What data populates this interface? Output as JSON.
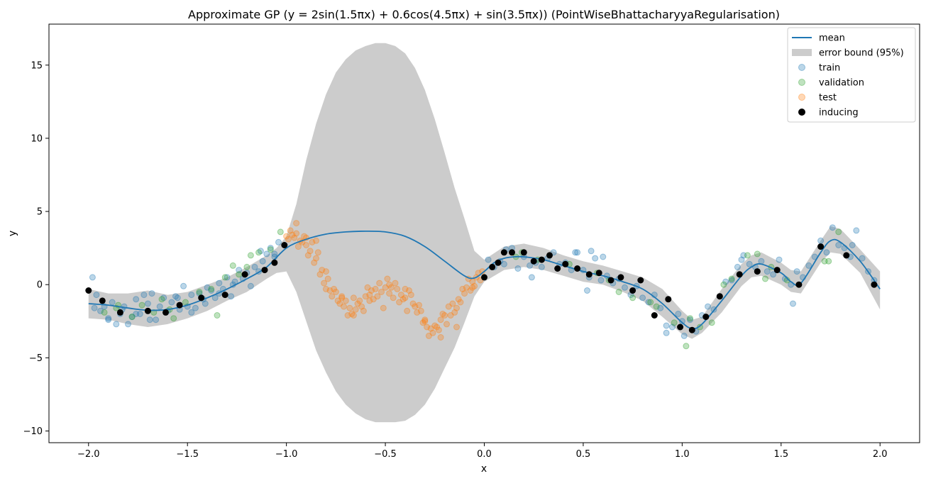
{
  "chart_data": {
    "type": "scatter",
    "title": "Approximate GP (y = 2sin(1.5πx) + 0.6cos(4.5πx) + sin(3.5πx)) (PointWiseBhattacharyyaRegularisation)",
    "xlabel": "x",
    "ylabel": "y",
    "xlim": [
      -2.2,
      2.2
    ],
    "ylim": [
      -10.8,
      17.8
    ],
    "xticks": [
      -2.0,
      -1.5,
      -1.0,
      -0.5,
      0.0,
      0.5,
      1.0,
      1.5,
      2.0
    ],
    "xtick_labels": [
      "−2.0",
      "−1.5",
      "−1.0",
      "−0.5",
      "0.0",
      "0.5",
      "1.0",
      "1.5",
      "2.0"
    ],
    "yticks": [
      -10,
      -5,
      0,
      5,
      10,
      15
    ],
    "ytick_labels": [
      "−10",
      "−5",
      "0",
      "5",
      "10",
      "15"
    ],
    "grid": false,
    "legend_position": "top-right",
    "colors": {
      "mean": "#1f77b4",
      "error_bound": "#cccccc",
      "train": "#1f77b4",
      "validation": "#2ca02c",
      "test": "#ff7f0e",
      "inducing": "#000000"
    },
    "legend": [
      {
        "key": "mean",
        "label": "mean",
        "marker": "line"
      },
      {
        "key": "error_bound",
        "label": "error bound (95%)",
        "marker": "patch"
      },
      {
        "key": "train",
        "label": "train",
        "marker": "circle-alpha"
      },
      {
        "key": "validation",
        "label": "validation",
        "marker": "circle-alpha"
      },
      {
        "key": "test",
        "label": "test",
        "marker": "circle-alpha"
      },
      {
        "key": "inducing",
        "label": "inducing",
        "marker": "circle"
      }
    ],
    "series": [
      {
        "name": "mean",
        "kind": "line",
        "x": [
          -2.0,
          -1.9,
          -1.8,
          -1.7,
          -1.6,
          -1.5,
          -1.4,
          -1.3,
          -1.2,
          -1.1,
          -1.0,
          -0.9,
          -0.8,
          -0.7,
          -0.6,
          -0.5,
          -0.4,
          -0.3,
          -0.2,
          -0.1,
          -0.05,
          0.0,
          0.05,
          0.1,
          0.15,
          0.2,
          0.3,
          0.4,
          0.5,
          0.6,
          0.7,
          0.8,
          0.9,
          1.0,
          1.05,
          1.1,
          1.2,
          1.3,
          1.35,
          1.4,
          1.5,
          1.55,
          1.6,
          1.7,
          1.75,
          1.8,
          1.9,
          2.0
        ],
        "y": [
          -1.3,
          -1.4,
          -1.6,
          -1.75,
          -1.7,
          -1.4,
          -0.9,
          -0.3,
          0.4,
          1.2,
          2.5,
          3.1,
          3.45,
          3.6,
          3.65,
          3.6,
          3.3,
          2.6,
          1.6,
          0.6,
          0.45,
          0.9,
          1.5,
          1.8,
          1.9,
          1.9,
          1.7,
          1.3,
          0.9,
          0.6,
          0.2,
          -0.3,
          -1.3,
          -2.6,
          -3.0,
          -2.7,
          -1.1,
          0.6,
          1.2,
          1.4,
          0.8,
          0.2,
          0.1,
          2.2,
          3.0,
          2.9,
          1.6,
          -0.3
        ]
      },
      {
        "name": "error bound (95%)",
        "kind": "band",
        "x": [
          -2.0,
          -1.9,
          -1.8,
          -1.7,
          -1.6,
          -1.5,
          -1.4,
          -1.3,
          -1.2,
          -1.1,
          -1.05,
          -1.0,
          -0.95,
          -0.9,
          -0.85,
          -0.8,
          -0.75,
          -0.7,
          -0.65,
          -0.6,
          -0.55,
          -0.5,
          -0.45,
          -0.4,
          -0.35,
          -0.3,
          -0.25,
          -0.2,
          -0.15,
          -0.1,
          -0.05,
          0.0,
          0.1,
          0.2,
          0.3,
          0.4,
          0.5,
          0.6,
          0.7,
          0.8,
          0.9,
          1.0,
          1.05,
          1.1,
          1.2,
          1.3,
          1.35,
          1.4,
          1.5,
          1.55,
          1.6,
          1.7,
          1.75,
          1.8,
          1.9,
          2.0
        ],
        "upper": [
          -0.3,
          -0.6,
          -0.6,
          -0.4,
          -0.7,
          -0.5,
          0.0,
          0.5,
          1.2,
          2.0,
          2.5,
          3.3,
          5.5,
          8.5,
          11.0,
          13.0,
          14.5,
          15.4,
          16.0,
          16.3,
          16.5,
          16.5,
          16.3,
          15.8,
          14.8,
          13.3,
          11.3,
          9.0,
          6.6,
          4.5,
          2.3,
          1.7,
          2.6,
          2.8,
          2.5,
          2.0,
          1.6,
          1.3,
          0.9,
          0.5,
          -0.3,
          -1.8,
          -2.4,
          -2.2,
          -0.3,
          1.4,
          2.0,
          2.2,
          1.5,
          1.0,
          0.9,
          3.0,
          4.0,
          3.8,
          2.4,
          0.9
        ],
        "lower": [
          -2.3,
          -2.4,
          -2.7,
          -2.9,
          -2.7,
          -2.3,
          -1.8,
          -1.1,
          -0.5,
          0.4,
          0.8,
          0.9,
          -0.5,
          -2.5,
          -4.5,
          -6.0,
          -7.3,
          -8.2,
          -8.8,
          -9.2,
          -9.4,
          -9.4,
          -9.4,
          -9.3,
          -8.9,
          -8.2,
          -7.1,
          -5.7,
          -4.3,
          -2.6,
          -0.8,
          0.2,
          1.0,
          1.2,
          1.0,
          0.6,
          0.2,
          0.0,
          -0.5,
          -1.1,
          -2.2,
          -3.4,
          -3.7,
          -3.3,
          -1.9,
          -0.1,
          0.5,
          0.6,
          0.0,
          -0.5,
          -0.6,
          1.5,
          2.2,
          2.1,
          0.8,
          -1.7
        ]
      },
      {
        "name": "train",
        "kind": "scatter",
        "x": [
          -1.98,
          -1.96,
          -1.94,
          -1.92,
          -1.9,
          -1.88,
          -1.86,
          -1.84,
          -1.82,
          -1.8,
          -1.78,
          -1.76,
          -1.74,
          -1.72,
          -1.7,
          -1.68,
          -1.66,
          -1.64,
          -1.62,
          -1.6,
          -1.58,
          -1.56,
          -1.54,
          -1.52,
          -1.5,
          -1.48,
          -1.46,
          -1.44,
          -1.42,
          -1.4,
          -1.38,
          -1.36,
          -1.34,
          -1.32,
          -1.3,
          -1.28,
          -1.26,
          -1.24,
          -1.22,
          -1.2,
          -1.18,
          -1.16,
          -1.14,
          -1.12,
          -1.1,
          -1.08,
          -1.06,
          -1.04,
          0.02,
          0.05,
          0.08,
          0.11,
          0.14,
          0.17,
          0.2,
          0.23,
          0.26,
          0.29,
          0.32,
          0.35,
          0.38,
          0.41,
          0.44,
          0.47,
          0.5,
          0.53,
          0.56,
          0.59,
          0.62,
          0.65,
          0.68,
          0.71,
          0.74,
          0.77,
          0.8,
          0.83,
          0.86,
          0.89,
          0.92,
          0.95,
          0.98,
          1.01,
          1.04,
          1.07,
          1.1,
          1.13,
          1.16,
          1.19,
          1.22,
          1.25,
          1.28,
          1.31,
          1.34,
          1.37,
          1.4,
          1.43,
          1.46,
          1.49,
          1.52,
          1.55,
          1.58,
          1.61,
          1.64,
          1.67,
          1.7,
          1.73,
          1.76,
          1.79,
          1.82,
          1.85,
          1.88,
          1.91,
          1.94,
          1.97,
          -1.97,
          -1.9,
          -1.83,
          -1.76,
          -1.69,
          -1.55,
          -1.48,
          -1.41,
          -1.34,
          -1.27,
          -1.13,
          -1.06,
          0.1,
          0.24,
          0.46,
          0.52,
          0.54,
          0.6,
          0.92,
          1.0,
          1.3,
          1.56,
          1.86
        ],
        "y": [
          0.5,
          -0.7,
          -1.8,
          -1.5,
          -2.4,
          -1.2,
          -2.7,
          -2.0,
          -1.5,
          -2.7,
          -2.2,
          -1.0,
          -2.0,
          -0.7,
          -1.3,
          -0.6,
          -2.4,
          -1.5,
          -0.9,
          -1.8,
          -1.2,
          -0.8,
          -1.7,
          -0.1,
          -1.5,
          -0.7,
          -1.6,
          -0.6,
          -1.0,
          -0.2,
          -0.4,
          -0.9,
          0.1,
          -0.3,
          0.5,
          -0.8,
          0.2,
          1.0,
          0.4,
          0.8,
          -0.1,
          1.2,
          0.9,
          1.6,
          2.1,
          2.5,
          1.9,
          2.9,
          1.7,
          1.2,
          1.6,
          2.4,
          2.5,
          1.1,
          1.9,
          1.3,
          1.5,
          1.2,
          1.8,
          2.2,
          1.4,
          1.5,
          1.0,
          2.2,
          1.0,
          0.5,
          1.8,
          0.3,
          0.6,
          0.1,
          0.4,
          -0.2,
          -0.7,
          -0.1,
          -0.9,
          -1.2,
          -0.7,
          -1.6,
          -2.8,
          -2.9,
          -2.0,
          -3.5,
          -2.4,
          -3.2,
          -2.1,
          -1.5,
          -1.7,
          -0.8,
          0.2,
          0.3,
          1.2,
          2.0,
          1.4,
          1.2,
          1.6,
          0.9,
          0.7,
          1.7,
          0.4,
          0.0,
          0.9,
          0.5,
          1.3,
          1.9,
          3.0,
          2.2,
          3.9,
          2.7,
          2.5,
          1.9,
          3.7,
          1.8,
          0.9,
          0.3,
          -1.6,
          -2.3,
          -1.7,
          -2.0,
          -2.4,
          -0.9,
          -1.9,
          -1.3,
          -0.6,
          0.0,
          2.3,
          2.1,
          1.4,
          0.5,
          2.2,
          -0.4,
          2.3,
          1.9,
          -3.3,
          -2.5,
          1.7,
          -1.3,
          2.7
        ]
      },
      {
        "name": "validation",
        "kind": "scatter",
        "x": [
          -1.92,
          -1.86,
          -1.78,
          -1.73,
          -1.67,
          -1.63,
          -1.57,
          -1.51,
          -1.44,
          -1.38,
          -1.31,
          -1.27,
          -1.24,
          -1.18,
          -1.14,
          -1.08,
          -1.03,
          0.16,
          0.19,
          0.43,
          0.63,
          0.68,
          0.75,
          0.84,
          0.87,
          1.02,
          1.04,
          1.09,
          1.15,
          1.21,
          1.33,
          1.38,
          1.42,
          1.53,
          1.74,
          1.79,
          -1.85,
          -1.59,
          -1.35,
          -1.2,
          0.27,
          0.57,
          0.96,
          1.25,
          1.45,
          1.72
        ],
        "y": [
          -1.9,
          -1.6,
          -2.2,
          -1.4,
          -1.9,
          -1.0,
          -2.3,
          -1.2,
          -0.5,
          -0.3,
          0.5,
          1.3,
          0.7,
          2.0,
          2.2,
          2.4,
          3.6,
          1.9,
          2.2,
          1.4,
          0.3,
          -0.5,
          -0.9,
          -1.2,
          -1.5,
          -4.2,
          -2.3,
          -2.9,
          -2.6,
          0.0,
          2.0,
          2.1,
          0.4,
          0.3,
          1.6,
          3.6,
          -1.4,
          -1.7,
          -2.1,
          1.2,
          1.7,
          0.8,
          -2.6,
          0.4,
          1.2,
          1.6
        ]
      },
      {
        "name": "test",
        "kind": "scatter",
        "x": [
          -1.0,
          -0.99,
          -0.98,
          -0.97,
          -0.96,
          -0.95,
          -0.94,
          -0.93,
          -0.92,
          -0.91,
          -0.9,
          -0.89,
          -0.88,
          -0.87,
          -0.86,
          -0.85,
          -0.84,
          -0.83,
          -0.82,
          -0.81,
          -0.8,
          -0.79,
          -0.78,
          -0.77,
          -0.76,
          -0.75,
          -0.74,
          -0.73,
          -0.72,
          -0.71,
          -0.7,
          -0.69,
          -0.68,
          -0.67,
          -0.66,
          -0.65,
          -0.64,
          -0.63,
          -0.62,
          -0.61,
          -0.6,
          -0.59,
          -0.58,
          -0.57,
          -0.56,
          -0.55,
          -0.54,
          -0.53,
          -0.52,
          -0.51,
          -0.5,
          -0.49,
          -0.48,
          -0.47,
          -0.46,
          -0.45,
          -0.44,
          -0.43,
          -0.42,
          -0.41,
          -0.4,
          -0.39,
          -0.38,
          -0.37,
          -0.36,
          -0.35,
          -0.34,
          -0.33,
          -0.32,
          -0.31,
          -0.3,
          -0.29,
          -0.28,
          -0.27,
          -0.26,
          -0.25,
          -0.24,
          -0.23,
          -0.22,
          -0.21,
          -0.2,
          -0.19,
          -0.18,
          -0.17,
          -0.16,
          -0.15,
          -0.14,
          -0.13,
          -0.12,
          -0.11,
          -0.1,
          -0.09,
          -0.08,
          -0.07,
          -0.06,
          -0.05,
          -0.04,
          -0.03,
          -0.02,
          -0.01,
          -0.95,
          -0.9,
          -0.85,
          -0.8,
          -0.72,
          -0.66,
          -0.58,
          -0.48,
          -0.4,
          -0.3,
          -0.22,
          -0.14,
          -0.06
        ],
        "y": [
          3.3,
          3.1,
          3.7,
          3.4,
          3.2,
          4.2,
          2.6,
          3.0,
          2.9,
          3.3,
          3.2,
          2.0,
          2.3,
          2.9,
          1.5,
          1.8,
          2.2,
          0.7,
          1.0,
          0.1,
          -0.3,
          0.4,
          -0.4,
          -0.8,
          -0.3,
          -0.5,
          -1.1,
          -1.3,
          -0.8,
          -1.5,
          -1.1,
          -2.1,
          -1.6,
          -2.0,
          -0.9,
          -1.7,
          -1.3,
          -1.1,
          -1.5,
          -1.8,
          -0.8,
          -0.2,
          -1.1,
          -0.4,
          -1.0,
          -0.3,
          -0.8,
          0.1,
          -0.5,
          -1.6,
          -0.2,
          0.4,
          -0.6,
          -0.2,
          -0.9,
          0.1,
          -0.3,
          -1.2,
          -0.7,
          -1.0,
          -0.3,
          -1.8,
          -0.4,
          -0.7,
          -1.3,
          -1.5,
          -1.9,
          -1.4,
          -1.8,
          -2.6,
          -2.4,
          -2.9,
          -3.5,
          -3.0,
          -3.3,
          -2.8,
          -2.9,
          -3.1,
          -2.4,
          -2.0,
          -2.1,
          -2.7,
          -1.5,
          -2.1,
          -1.3,
          -1.9,
          -1.6,
          -1.0,
          -1.2,
          -0.3,
          -0.6,
          -0.2,
          0.4,
          -0.4,
          0.2,
          -0.1,
          0.5,
          0.8,
          0.3,
          0.9,
          3.5,
          2.7,
          3.0,
          0.9,
          -0.9,
          -2.1,
          -0.7,
          0.0,
          -0.9,
          -2.5,
          -3.6,
          -2.9,
          -0.2
        ]
      },
      {
        "name": "inducing",
        "kind": "scatter",
        "x": [
          -2.0,
          -1.93,
          -1.84,
          -1.7,
          -1.61,
          -1.54,
          -1.43,
          -1.31,
          -1.21,
          -1.11,
          -1.06,
          -1.01,
          0.0,
          0.04,
          0.07,
          0.1,
          0.14,
          0.2,
          0.25,
          0.29,
          0.33,
          0.37,
          0.41,
          0.47,
          0.53,
          0.58,
          0.64,
          0.69,
          0.75,
          0.79,
          0.86,
          0.93,
          0.99,
          1.05,
          1.12,
          1.19,
          1.29,
          1.38,
          1.48,
          1.59,
          1.7,
          1.83,
          1.97
        ],
        "y": [
          -0.4,
          -1.1,
          -1.9,
          -1.8,
          -1.9,
          -1.4,
          -0.9,
          -0.7,
          0.7,
          1.0,
          1.5,
          2.7,
          0.5,
          1.2,
          1.5,
          2.2,
          2.2,
          2.2,
          1.6,
          1.7,
          2.0,
          1.1,
          1.4,
          1.1,
          0.7,
          0.8,
          0.3,
          0.5,
          -0.4,
          0.3,
          -2.1,
          -1.0,
          -2.9,
          -3.1,
          -2.2,
          -0.8,
          0.7,
          0.9,
          1.0,
          0.0,
          2.6,
          2.0,
          0.0
        ]
      }
    ]
  }
}
